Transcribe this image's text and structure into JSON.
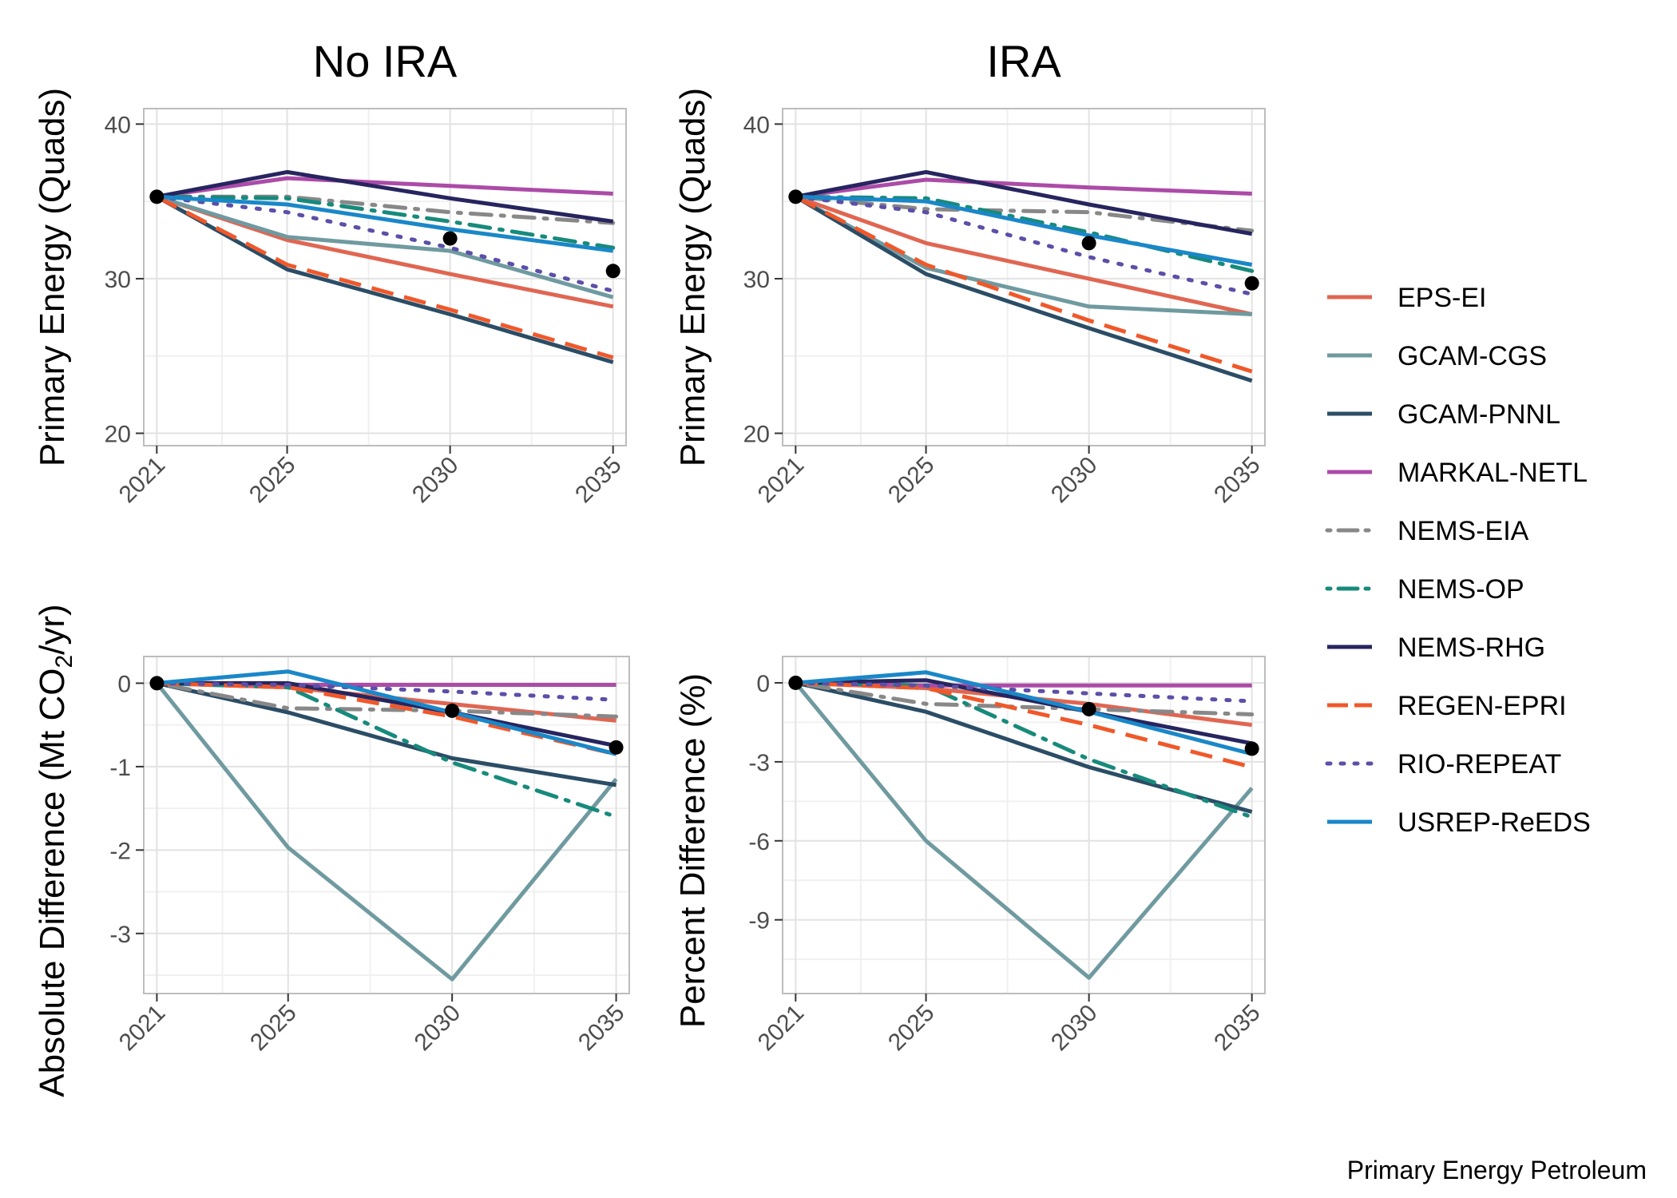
{
  "caption": "Primary Energy Petroleum",
  "colors": {
    "EPS-EI": "#e06652",
    "GCAM-CGS": "#6f9aa0",
    "GCAM-PNNL": "#2b4d66",
    "MARKAL-NETL": "#ac4ba8",
    "NEMS-EIA": "#888888",
    "NEMS-OP": "#178a7c",
    "NEMS-RHG": "#26255f",
    "REGEN-EPRI": "#f0582a",
    "RIO-REPEAT": "#5b4fa8",
    "USREP-ReEDS": "#1a87c8"
  },
  "dashes": {
    "EPS-EI": "solid",
    "GCAM-CGS": "solid",
    "GCAM-PNNL": "solid",
    "MARKAL-NETL": "solid",
    "NEMS-EIA": "dotdash",
    "NEMS-OP": "dotdash",
    "NEMS-RHG": "solid",
    "REGEN-EPRI": "dashed",
    "RIO-REPEAT": "dotted",
    "USREP-ReEDS": "solid"
  },
  "legend": [
    "EPS-EI",
    "GCAM-CGS",
    "GCAM-PNNL",
    "MARKAL-NETL",
    "NEMS-EIA",
    "NEMS-OP",
    "NEMS-RHG",
    "REGEN-EPRI",
    "RIO-REPEAT",
    "USREP-ReEDS"
  ],
  "chart_data": [
    {
      "type": "line",
      "title": "No IRA",
      "ylabel": "Primary Energy (Quads)",
      "x": [
        2021,
        2025,
        2030,
        2035
      ],
      "xticks": [
        "2021",
        "2025",
        "2030",
        "2035"
      ],
      "ylim": [
        19.2,
        41
      ],
      "yticks": [
        20,
        30,
        40
      ],
      "ytick_labels": [
        "20",
        "30",
        "40"
      ],
      "series": [
        {
          "name": "EPS-EI",
          "values": [
            35.3,
            32.5,
            30.3,
            28.2
          ]
        },
        {
          "name": "GCAM-CGS",
          "values": [
            35.3,
            32.7,
            31.8,
            28.8
          ]
        },
        {
          "name": "GCAM-PNNL",
          "values": [
            35.3,
            30.6,
            27.7,
            24.6
          ]
        },
        {
          "name": "MARKAL-NETL",
          "values": [
            35.3,
            36.5,
            36.0,
            35.5
          ]
        },
        {
          "name": "NEMS-EIA",
          "values": [
            35.3,
            35.3,
            34.3,
            33.6
          ]
        },
        {
          "name": "NEMS-OP",
          "values": [
            35.3,
            35.2,
            33.7,
            32.0
          ]
        },
        {
          "name": "NEMS-RHG",
          "values": [
            35.3,
            36.9,
            35.2,
            33.7
          ]
        },
        {
          "name": "REGEN-EPRI",
          "values": [
            35.3,
            30.9,
            28.0,
            24.9
          ]
        },
        {
          "name": "RIO-REPEAT",
          "values": [
            35.3,
            34.3,
            32.0,
            29.2
          ]
        },
        {
          "name": "USREP-ReEDS",
          "values": [
            35.3,
            34.8,
            33.2,
            31.8
          ]
        }
      ],
      "markers": [
        {
          "x": 2021,
          "y": 35.3
        },
        {
          "x": 2030,
          "y": 32.6
        },
        {
          "x": 2035,
          "y": 30.5
        }
      ]
    },
    {
      "type": "line",
      "title": "IRA",
      "ylabel": "Primary Energy (Quads)",
      "x": [
        2021,
        2025,
        2030,
        2035
      ],
      "xticks": [
        "2021",
        "2025",
        "2030",
        "2035"
      ],
      "ylim": [
        19.2,
        41
      ],
      "yticks": [
        20,
        30,
        40
      ],
      "ytick_labels": [
        "20",
        "30",
        "40"
      ],
      "series": [
        {
          "name": "EPS-EI",
          "values": [
            35.3,
            32.3,
            30.0,
            27.7
          ]
        },
        {
          "name": "GCAM-CGS",
          "values": [
            35.3,
            30.7,
            28.2,
            27.7
          ]
        },
        {
          "name": "GCAM-PNNL",
          "values": [
            35.3,
            30.3,
            26.8,
            23.4
          ]
        },
        {
          "name": "MARKAL-NETL",
          "values": [
            35.3,
            36.4,
            35.9,
            35.5
          ]
        },
        {
          "name": "NEMS-EIA",
          "values": [
            35.3,
            34.5,
            34.3,
            33.1
          ]
        },
        {
          "name": "NEMS-OP",
          "values": [
            35.3,
            35.2,
            33.0,
            30.5
          ]
        },
        {
          "name": "NEMS-RHG",
          "values": [
            35.3,
            36.9,
            34.8,
            32.9
          ]
        },
        {
          "name": "REGEN-EPRI",
          "values": [
            35.3,
            30.9,
            27.3,
            24.0
          ]
        },
        {
          "name": "RIO-REPEAT",
          "values": [
            35.3,
            34.3,
            31.4,
            29.0
          ]
        },
        {
          "name": "USREP-ReEDS",
          "values": [
            35.3,
            35.0,
            32.8,
            30.9
          ]
        }
      ],
      "markers": [
        {
          "x": 2021,
          "y": 35.3
        },
        {
          "x": 2030,
          "y": 32.3
        },
        {
          "x": 2035,
          "y": 29.7
        }
      ]
    },
    {
      "type": "line",
      "title": "",
      "ylabel": "Absolute Difference (Mt CO2/yr)",
      "ylabel_parts": [
        "Absolute Difference (Mt CO",
        "2",
        "/yr)"
      ],
      "x": [
        2021,
        2025,
        2030,
        2035
      ],
      "xticks": [
        "2021",
        "2025",
        "2030",
        "2035"
      ],
      "ylim": [
        -3.72,
        0.32
      ],
      "yticks": [
        -3,
        -2,
        -1,
        0
      ],
      "ytick_labels": [
        "-3",
        "-2",
        "-1",
        "0"
      ],
      "series": [
        {
          "name": "EPS-EI",
          "values": [
            0,
            -0.05,
            -0.25,
            -0.45
          ]
        },
        {
          "name": "GCAM-CGS",
          "values": [
            0,
            -1.97,
            -3.55,
            -1.15
          ]
        },
        {
          "name": "GCAM-PNNL",
          "values": [
            0,
            -0.35,
            -0.9,
            -1.22
          ]
        },
        {
          "name": "MARKAL-NETL",
          "values": [
            0,
            -0.02,
            -0.02,
            -0.02
          ]
        },
        {
          "name": "NEMS-EIA",
          "values": [
            0,
            -0.3,
            -0.33,
            -0.4
          ]
        },
        {
          "name": "NEMS-OP",
          "values": [
            0,
            -0.05,
            -0.95,
            -1.6
          ]
        },
        {
          "name": "NEMS-RHG",
          "values": [
            0,
            0.0,
            -0.35,
            -0.75
          ]
        },
        {
          "name": "REGEN-EPRI",
          "values": [
            0,
            -0.05,
            -0.4,
            -0.85
          ]
        },
        {
          "name": "RIO-REPEAT",
          "values": [
            0,
            -0.02,
            -0.1,
            -0.2
          ]
        },
        {
          "name": "USREP-ReEDS",
          "values": [
            0,
            0.14,
            -0.35,
            -0.85
          ]
        }
      ],
      "markers": [
        {
          "x": 2021,
          "y": 0
        },
        {
          "x": 2030,
          "y": -0.33
        },
        {
          "x": 2035,
          "y": -0.77
        }
      ]
    },
    {
      "type": "line",
      "title": "",
      "ylabel": "Percent Difference (%)",
      "x": [
        2021,
        2025,
        2030,
        2035
      ],
      "xticks": [
        "2021",
        "2025",
        "2030",
        "2035"
      ],
      "ylim": [
        -11.8,
        1.0
      ],
      "yticks": [
        -9,
        -6,
        -3,
        0
      ],
      "ytick_labels": [
        "-9",
        "-6",
        "-3",
        "0"
      ],
      "series": [
        {
          "name": "EPS-EI",
          "values": [
            0,
            -0.2,
            -0.8,
            -1.6
          ]
        },
        {
          "name": "GCAM-CGS",
          "values": [
            0,
            -6.0,
            -11.2,
            -4.0
          ]
        },
        {
          "name": "GCAM-PNNL",
          "values": [
            0,
            -1.1,
            -3.2,
            -4.9
          ]
        },
        {
          "name": "MARKAL-NETL",
          "values": [
            0,
            -0.1,
            -0.1,
            -0.1
          ]
        },
        {
          "name": "NEMS-EIA",
          "values": [
            0,
            -0.8,
            -1.0,
            -1.2
          ]
        },
        {
          "name": "NEMS-OP",
          "values": [
            0,
            -0.1,
            -2.9,
            -5.1
          ]
        },
        {
          "name": "NEMS-RHG",
          "values": [
            0,
            0.1,
            -1.1,
            -2.3
          ]
        },
        {
          "name": "REGEN-EPRI",
          "values": [
            0,
            -0.2,
            -1.6,
            -3.2
          ]
        },
        {
          "name": "RIO-REPEAT",
          "values": [
            0,
            -0.1,
            -0.4,
            -0.7
          ]
        },
        {
          "name": "USREP-ReEDS",
          "values": [
            0,
            0.4,
            -1.1,
            -2.7
          ]
        }
      ],
      "markers": [
        {
          "x": 2021,
          "y": 0
        },
        {
          "x": 2030,
          "y": -1.0
        },
        {
          "x": 2035,
          "y": -2.5
        }
      ]
    }
  ]
}
